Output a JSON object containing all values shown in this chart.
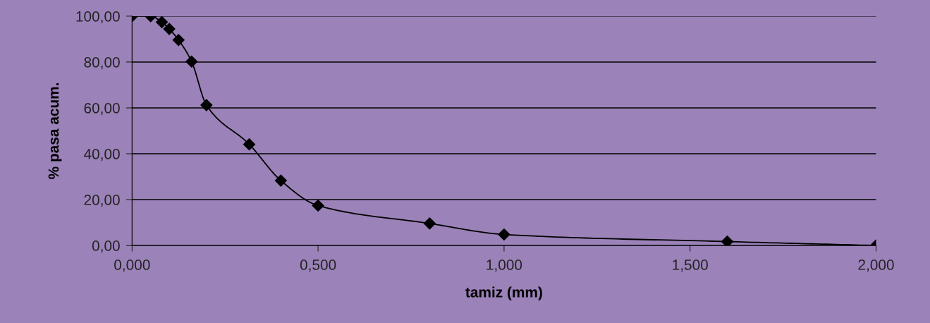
{
  "chart_data": {
    "type": "line",
    "xlabel": "tamiz (mm)",
    "ylabel": "% pasa acum.",
    "x": [
      0,
      0.05,
      0.08,
      0.1,
      0.125,
      0.16,
      0.2,
      0.315,
      0.4,
      0.5,
      0.8,
      1.0,
      1.6,
      2.0
    ],
    "series": [
      {
        "color": "#000000",
        "values": [
          100,
          100,
          97.4,
          94.4,
          89.6,
          80.2,
          61.2,
          44.1,
          28.3,
          17.4,
          9.6,
          4.8,
          1.7,
          0
        ]
      }
    ],
    "marker": "diamond",
    "grid": "y",
    "legend": false,
    "xlim": [
      0,
      2.0
    ],
    "ylim": [
      0,
      100
    ],
    "xticks": [
      {
        "value": 0,
        "label": "0,000"
      },
      {
        "value": 0.5,
        "label": "0,500"
      },
      {
        "value": 1.0,
        "label": "1,000"
      },
      {
        "value": 1.5,
        "label": "1,500"
      },
      {
        "value": 2.0,
        "label": "2,000"
      }
    ],
    "yticks": [
      {
        "value": 0,
        "label": "0,00"
      },
      {
        "value": 20,
        "label": "20,00"
      },
      {
        "value": 40,
        "label": "40,00"
      },
      {
        "value": 60,
        "label": "60,00"
      },
      {
        "value": 80,
        "label": "80,00"
      },
      {
        "value": 100,
        "label": "100,00"
      }
    ]
  }
}
